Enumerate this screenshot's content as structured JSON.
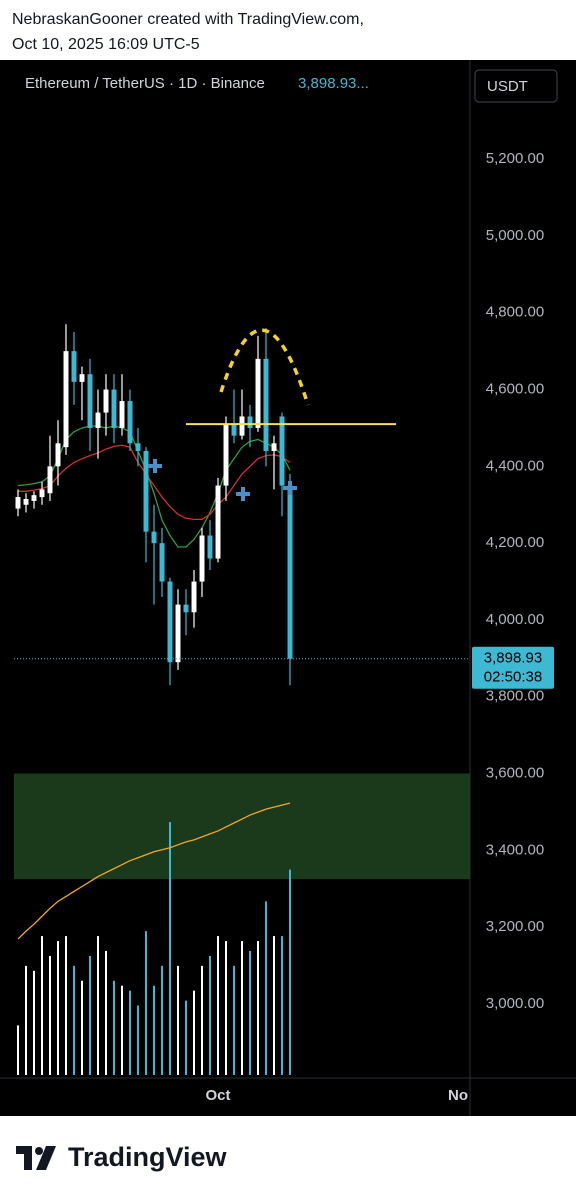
{
  "attribution": {
    "line1": "NebraskanGooner created with TradingView.com,",
    "line2": "Oct 10, 2025 16:09 UTC-5"
  },
  "brand": "TradingView",
  "chart_data": {
    "type": "candlestick",
    "symbol": "Ethereum / TetherUS · 1D · Binance",
    "header_price": "3,898.93...",
    "currency": "USDT",
    "ylim": [
      2815,
      5453
    ],
    "yticks": [
      {
        "value": 3000,
        "label": "3,000.00"
      },
      {
        "value": 3200,
        "label": "3,200.00"
      },
      {
        "value": 3400,
        "label": "3,400.00"
      },
      {
        "value": 3600,
        "label": "3,600.00"
      },
      {
        "value": 3800,
        "label": "3,800.00"
      },
      {
        "value": 4000,
        "label": "4,000.00"
      },
      {
        "value": 4200,
        "label": "4,200.00"
      },
      {
        "value": 4400,
        "label": "4,400.00"
      },
      {
        "value": 4600,
        "label": "4,600.00"
      },
      {
        "value": 4800,
        "label": "4,800.00"
      },
      {
        "value": 5000,
        "label": "5,000.00"
      },
      {
        "value": 5200,
        "label": "5,200.00"
      }
    ],
    "xlim": [
      -0.5,
      56.5
    ],
    "xticks": [
      {
        "value": 25,
        "label": "Oct"
      },
      {
        "value": 55,
        "label": "No"
      }
    ],
    "up_color": "#ffffff",
    "down_color": "#3db9d3",
    "open": [
      4290,
      4300,
      4310,
      4320,
      4330,
      4400,
      4450,
      4700,
      4620,
      4640,
      4500,
      4540,
      4600,
      4500,
      4570,
      4460,
      4440,
      4230,
      4200,
      4100,
      3890,
      4040,
      4020,
      4100,
      4220,
      4160,
      4350,
      4510,
      4480,
      4530,
      4500,
      4680,
      4440,
      4530,
      4350
    ],
    "high": [
      4340,
      4330,
      4335,
      4360,
      4480,
      4520,
      4770,
      4750,
      4660,
      4680,
      4600,
      4640,
      4640,
      4640,
      4600,
      4500,
      4450,
      4300,
      4240,
      4110,
      4080,
      4080,
      4130,
      4240,
      4260,
      4370,
      4530,
      4600,
      4600,
      4560,
      4740,
      4760,
      4480,
      4540,
      4380
    ],
    "low": [
      4270,
      4280,
      4290,
      4300,
      4310,
      4350,
      4430,
      4560,
      4520,
      4440,
      4420,
      4480,
      4460,
      4480,
      4440,
      4400,
      4150,
      4040,
      4060,
      3830,
      3870,
      3960,
      3980,
      4060,
      4130,
      4150,
      4310,
      4460,
      4470,
      4450,
      4490,
      4400,
      4340,
      4270,
      3830
    ],
    "close": [
      4320,
      4315,
      4325,
      4340,
      4400,
      4460,
      4700,
      4620,
      4640,
      4500,
      4540,
      4600,
      4500,
      4570,
      4460,
      4440,
      4230,
      4200,
      4100,
      3890,
      4040,
      4020,
      4100,
      4220,
      4160,
      4350,
      4510,
      4480,
      4530,
      4500,
      4680,
      4440,
      4460,
      4350,
      3898.93
    ],
    "moving_averages": [
      {
        "color": "#2e9e3e",
        "values": [
          4350,
          4352,
          4355,
          4360,
          4375,
          4420,
          4470,
          4490,
          4500,
          4505,
          4505,
          4500,
          4505,
          4500,
          4490,
          4440,
          4390,
          4330,
          4260,
          4220,
          4190,
          4190,
          4210,
          4240,
          4280,
          4330,
          4390,
          4420,
          4450,
          4465,
          4470,
          4460,
          4450,
          4430,
          4390
        ]
      },
      {
        "color": "#d32f2f",
        "values": [
          4335,
          4335,
          4338,
          4342,
          4350,
          4375,
          4395,
          4410,
          4420,
          4428,
          4435,
          4445,
          4452,
          4455,
          4450,
          4410,
          4380,
          4350,
          4320,
          4295,
          4275,
          4265,
          4262,
          4262,
          4275,
          4300,
          4320,
          4350,
          4380,
          4400,
          4420,
          4428,
          4430,
          4425,
          4410
        ]
      }
    ],
    "volume": {
      "values": [
        50,
        110,
        105,
        140,
        120,
        135,
        140,
        110,
        95,
        120,
        140,
        125,
        95,
        90,
        85,
        70,
        145,
        90,
        110,
        255,
        110,
        75,
        85,
        110,
        120,
        140,
        135,
        110,
        135,
        125,
        135,
        175,
        140,
        140,
        207
      ],
      "ma": [
        137,
        145,
        152,
        160,
        168,
        175,
        180,
        185,
        190,
        195,
        200,
        204,
        208,
        212,
        216,
        219,
        222,
        225,
        227,
        229,
        232,
        235,
        237,
        240,
        243,
        246,
        250,
        254,
        258,
        262,
        265,
        268,
        270,
        272,
        274
      ],
      "ma_color": "#f5a623"
    },
    "zone": {
      "low": 3325,
      "high": 3600,
      "color": "#1b3a1c"
    },
    "hline": {
      "value": 4510,
      "from": 21,
      "to": 47.25,
      "color": "#f5e15a"
    },
    "last_price": {
      "value": 3898.93,
      "label": "3,898.93"
    },
    "countdown": "02:50:38"
  }
}
